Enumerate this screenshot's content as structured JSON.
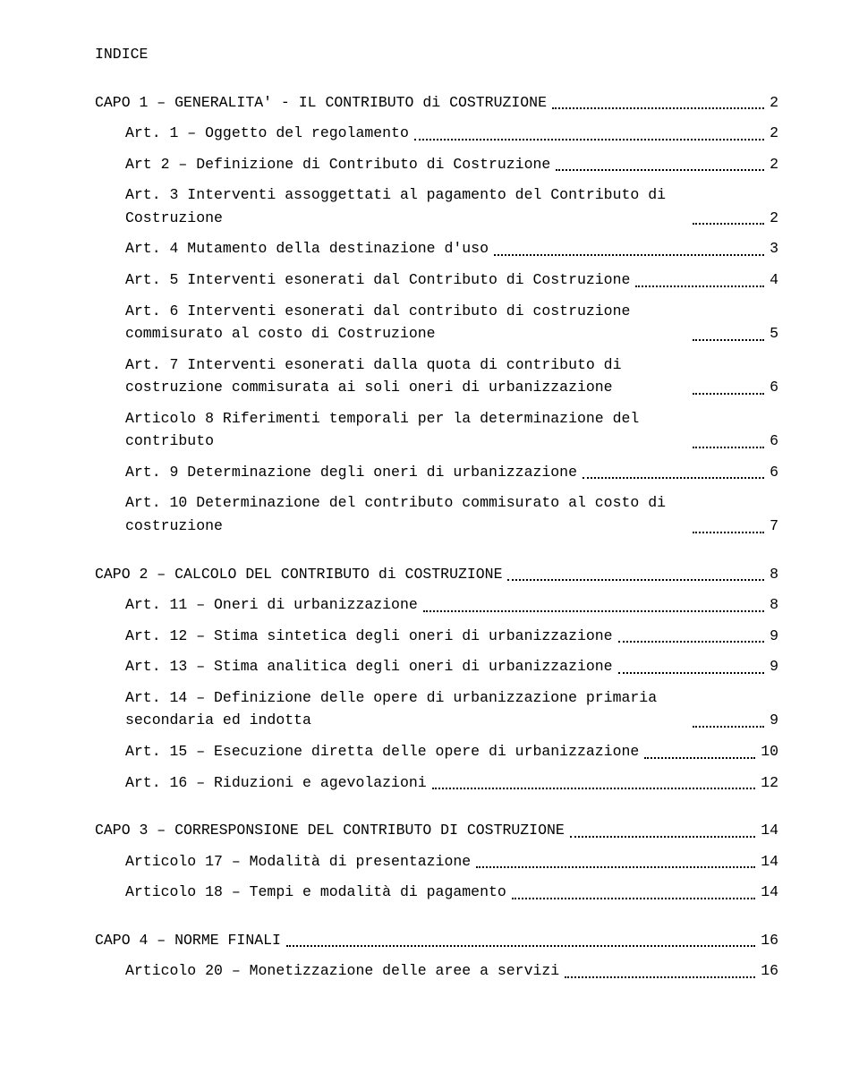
{
  "title": "INDICE",
  "chapters": [
    {
      "label": "CAPO 1 – GENERALITA' - IL CONTRIBUTO di COSTRUZIONE",
      "page": "2",
      "articles": [
        {
          "label": "Art. 1 – Oggetto del regolamento",
          "page": "2"
        },
        {
          "label": "Art 2 – Definizione di Contributo di Costruzione",
          "page": "2"
        },
        {
          "label": "Art. 3 Interventi assoggettati al pagamento del Contributo di Costruzione",
          "page": "2"
        },
        {
          "label": "Art. 4 Mutamento della destinazione d'uso",
          "page": "3"
        },
        {
          "label": "Art. 5 Interventi esonerati dal Contributo di Costruzione",
          "page": "4"
        },
        {
          "label": "Art. 6 Interventi esonerati dal contributo di costruzione commisurato al costo di Costruzione",
          "page": "5"
        },
        {
          "label": "Art. 7 Interventi esonerati dalla quota di contributo di costruzione commisurata ai soli oneri di urbanizzazione",
          "page": "6"
        },
        {
          "label": "Articolo 8 Riferimenti temporali per la determinazione del contributo",
          "page": "6"
        },
        {
          "label": "Art. 9 Determinazione degli oneri di urbanizzazione",
          "page": "6"
        },
        {
          "label": "Art. 10 Determinazione del contributo commisurato al costo di costruzione",
          "page": "7"
        }
      ]
    },
    {
      "label": "CAPO 2 – CALCOLO DEL CONTRIBUTO di COSTRUZIONE",
      "page": "8",
      "articles": [
        {
          "label": "Art. 11 –  Oneri di urbanizzazione",
          "page": "8"
        },
        {
          "label": "Art. 12 – Stima sintetica degli oneri di urbanizzazione",
          "page": "9"
        },
        {
          "label": "Art. 13 – Stima analitica degli oneri di urbanizzazione",
          "page": "9"
        },
        {
          "label": "Art. 14 – Definizione delle opere di urbanizzazione primaria secondaria ed indotta",
          "page": "9"
        },
        {
          "label": "Art. 15 – Esecuzione diretta delle opere di urbanizzazione",
          "page": "10"
        },
        {
          "label": "Art. 16 – Riduzioni e agevolazioni",
          "page": "12"
        }
      ]
    },
    {
      "label": "CAPO 3 – CORRESPONSIONE DEL CONTRIBUTO DI COSTRUZIONE",
      "page": "14",
      "articles": [
        {
          "label": "Articolo 17 – Modalità di presentazione",
          "page": "14"
        },
        {
          "label": "Articolo 18 – Tempi e modalità di pagamento",
          "page": "14"
        }
      ]
    },
    {
      "label": "CAPO 4 – NORME FINALI",
      "page": "16",
      "articles": [
        {
          "label": "Articolo 20 – Monetizzazione delle aree a servizi",
          "page": "16"
        }
      ]
    }
  ]
}
